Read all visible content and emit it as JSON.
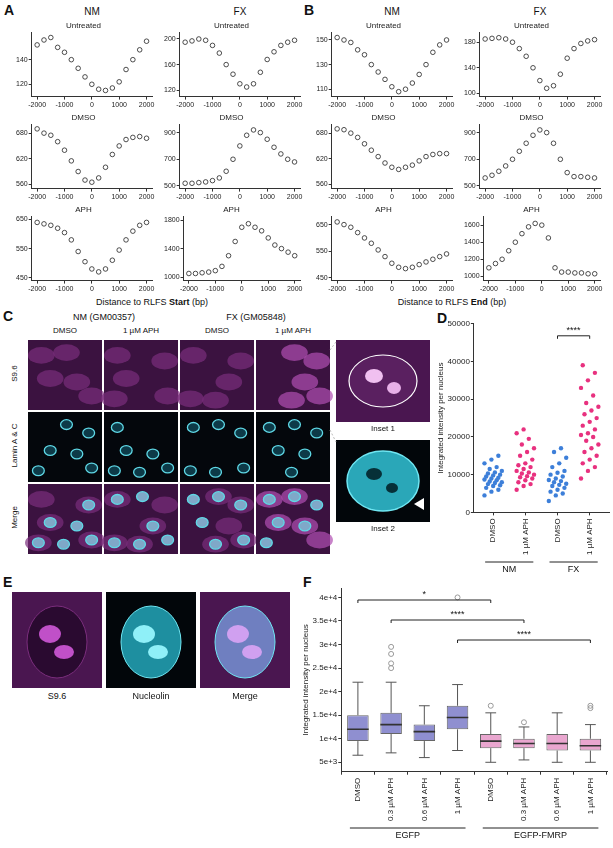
{
  "panel_headers": {
    "A": {
      "columns": [
        "NM",
        "FX"
      ],
      "x_label": [
        "Distance to RLFS",
        "Start",
        "(bp)"
      ]
    },
    "B": {
      "columns": [
        "NM",
        "FX"
      ],
      "x_label": [
        "Distance to RLFS",
        "End",
        "(bp)"
      ]
    }
  },
  "images": {
    "C": {
      "columns": [
        {
          "label": "NM (GM00357)",
          "conditions": [
            "DMSO",
            "1 µM APH"
          ]
        },
        {
          "label": "FX (GM05848)",
          "conditions": [
            "DMSO",
            "1 µM APH"
          ]
        }
      ],
      "rows": [
        "S9.6",
        "Lamin A & C",
        "Merge"
      ],
      "insets": [
        "Inset 1",
        "Inset 2"
      ]
    },
    "E": {
      "channels": [
        "S9.6",
        "Nucleolin",
        "Merge"
      ]
    }
  },
  "chart_data": [
    {
      "type": "scatter",
      "panel": "A",
      "column": "NM",
      "title": "Untreated",
      "marker": "circle",
      "grid": false,
      "x": [
        -2000,
        -1750,
        -1500,
        -1250,
        -1000,
        -750,
        -500,
        -250,
        0,
        250,
        500,
        750,
        1000,
        1250,
        1500,
        1750,
        2000
      ],
      "values": [
        152,
        156,
        158,
        150,
        146,
        140,
        133,
        126,
        120,
        116,
        115,
        117,
        122,
        132,
        140,
        148,
        155
      ],
      "xlim": [
        -2200,
        2200
      ],
      "xticks": [
        -2000,
        -1000,
        0,
        1000,
        2000
      ],
      "ylim": [
        110,
        162
      ],
      "yticks": [
        120,
        140
      ]
    },
    {
      "type": "scatter",
      "panel": "A",
      "column": "FX",
      "title": "Untreated",
      "marker": "circle",
      "grid": false,
      "x": [
        -2000,
        -1750,
        -1500,
        -1250,
        -1000,
        -750,
        -500,
        -250,
        0,
        250,
        500,
        750,
        1000,
        1250,
        1500,
        1750,
        2000
      ],
      "values": [
        195,
        197,
        200,
        198,
        190,
        178,
        160,
        145,
        130,
        125,
        130,
        148,
        168,
        180,
        190,
        195,
        198
      ],
      "xlim": [
        -2200,
        2200
      ],
      "xticks": [
        -2000,
        -1000,
        0,
        1000,
        2000
      ],
      "ylim": [
        110,
        210
      ],
      "yticks": [
        120,
        160,
        200
      ]
    },
    {
      "type": "scatter",
      "panel": "A",
      "column": "NM",
      "title": "DMSO",
      "marker": "circle",
      "grid": false,
      "x": [
        -2000,
        -1750,
        -1500,
        -1250,
        -1000,
        -750,
        -500,
        -250,
        0,
        250,
        500,
        750,
        1000,
        1250,
        1500,
        1750,
        2000
      ],
      "values": [
        690,
        680,
        675,
        660,
        640,
        615,
        590,
        570,
        565,
        575,
        600,
        630,
        650,
        665,
        670,
        672,
        668
      ],
      "xlim": [
        -2200,
        2200
      ],
      "xticks": [
        -2000,
        -1000,
        0,
        1000,
        2000
      ],
      "ylim": [
        550,
        700
      ],
      "yticks": [
        560,
        620,
        680
      ]
    },
    {
      "type": "scatter",
      "panel": "A",
      "column": "FX",
      "title": "DMSO",
      "marker": "circle",
      "grid": false,
      "x": [
        -2000,
        -1750,
        -1500,
        -1250,
        -1000,
        -750,
        -500,
        -250,
        0,
        250,
        500,
        750,
        1000,
        1250,
        1500,
        1750,
        2000
      ],
      "values": [
        520,
        520,
        525,
        530,
        540,
        560,
        610,
        700,
        800,
        880,
        920,
        900,
        850,
        790,
        740,
        700,
        680
      ],
      "xlim": [
        -2200,
        2200
      ],
      "xticks": [
        -2000,
        -1000,
        0,
        1000,
        2000
      ],
      "ylim": [
        480,
        960
      ],
      "yticks": [
        500,
        700,
        900
      ]
    },
    {
      "type": "scatter",
      "panel": "A",
      "column": "NM",
      "title": "APH",
      "marker": "circle",
      "grid": false,
      "x": [
        -2000,
        -1750,
        -1500,
        -1250,
        -1000,
        -750,
        -500,
        -250,
        0,
        250,
        500,
        750,
        1000,
        1250,
        1500,
        1750,
        2000
      ],
      "values": [
        640,
        635,
        630,
        620,
        605,
        580,
        540,
        505,
        480,
        470,
        480,
        510,
        545,
        580,
        610,
        630,
        640
      ],
      "xlim": [
        -2200,
        2200
      ],
      "xticks": [
        -2000,
        -1000,
        0,
        1000,
        2000
      ],
      "ylim": [
        440,
        660
      ],
      "yticks": [
        450,
        550,
        650
      ]
    },
    {
      "type": "scatter",
      "panel": "A",
      "column": "FX",
      "title": "APH",
      "marker": "circle",
      "grid": false,
      "x": [
        -2000,
        -1750,
        -1500,
        -1250,
        -1000,
        -750,
        -500,
        -250,
        0,
        250,
        500,
        750,
        1000,
        1250,
        1500,
        1750,
        2000
      ],
      "values": [
        1050,
        1050,
        1060,
        1070,
        1090,
        1150,
        1300,
        1500,
        1700,
        1750,
        1700,
        1650,
        1550,
        1450,
        1400,
        1350,
        1300
      ],
      "xlim": [
        -2200,
        2200
      ],
      "xticks": [
        -2000,
        -1000,
        0,
        1000,
        2000
      ],
      "ylim": [
        950,
        1850
      ],
      "yticks": [
        1000,
        1400,
        1800
      ]
    },
    {
      "type": "scatter",
      "panel": "B",
      "column": "NM",
      "title": "Untreated",
      "marker": "circle",
      "grid": false,
      "x": [
        -2000,
        -1750,
        -1500,
        -1250,
        -1000,
        -750,
        -500,
        -250,
        0,
        250,
        500,
        750,
        1000,
        1250,
        1500,
        1750,
        2000
      ],
      "values": [
        152,
        150,
        148,
        142,
        138,
        130,
        124,
        118,
        112,
        108,
        110,
        115,
        122,
        130,
        140,
        146,
        150
      ],
      "xlim": [
        -2200,
        2200
      ],
      "xticks": [
        -2000,
        -1000,
        0,
        1000,
        2000
      ],
      "ylim": [
        104,
        156
      ],
      "yticks": [
        110,
        130,
        150
      ]
    },
    {
      "type": "scatter",
      "panel": "B",
      "column": "FX",
      "title": "Untreated",
      "marker": "circle",
      "grid": false,
      "x": [
        -2000,
        -1750,
        -1500,
        -1250,
        -1000,
        -750,
        -500,
        -250,
        0,
        250,
        500,
        750,
        1000,
        1250,
        1500,
        1750,
        2000
      ],
      "values": [
        185,
        186,
        187,
        185,
        180,
        170,
        158,
        140,
        120,
        108,
        112,
        130,
        155,
        170,
        178,
        182,
        184
      ],
      "xlim": [
        -2200,
        2200
      ],
      "xticks": [
        -2000,
        -1000,
        0,
        1000,
        2000
      ],
      "ylim": [
        95,
        195
      ],
      "yticks": [
        100,
        140,
        180
      ]
    },
    {
      "type": "scatter",
      "panel": "B",
      "column": "NM",
      "title": "DMSO",
      "marker": "circle",
      "grid": false,
      "x": [
        -2000,
        -1750,
        -1500,
        -1250,
        -1000,
        -750,
        -500,
        -250,
        0,
        250,
        500,
        750,
        1000,
        1250,
        1500,
        1750,
        2000
      ],
      "values": [
        690,
        688,
        680,
        670,
        655,
        640,
        625,
        610,
        600,
        595,
        600,
        605,
        615,
        625,
        630,
        632,
        632
      ],
      "xlim": [
        -2200,
        2200
      ],
      "xticks": [
        -2000,
        -1000,
        0,
        1000,
        2000
      ],
      "ylim": [
        550,
        700
      ],
      "yticks": [
        560,
        620,
        680
      ]
    },
    {
      "type": "scatter",
      "panel": "B",
      "column": "FX",
      "title": "DMSO",
      "marker": "circle",
      "grid": false,
      "x": [
        -2000,
        -1750,
        -1500,
        -1250,
        -1000,
        -750,
        -500,
        -250,
        0,
        250,
        500,
        750,
        1000,
        1250,
        1500,
        1750,
        2000
      ],
      "values": [
        560,
        580,
        610,
        650,
        700,
        760,
        820,
        880,
        920,
        900,
        820,
        700,
        600,
        570,
        570,
        565,
        560
      ],
      "xlim": [
        -2200,
        2200
      ],
      "xticks": [
        -2000,
        -1000,
        0,
        1000,
        2000
      ],
      "ylim": [
        480,
        960
      ],
      "yticks": [
        500,
        700,
        900
      ]
    },
    {
      "type": "scatter",
      "panel": "B",
      "column": "NM",
      "title": "APH",
      "marker": "circle",
      "grid": false,
      "x": [
        -2000,
        -1750,
        -1500,
        -1250,
        -1000,
        -750,
        -500,
        -250,
        0,
        250,
        500,
        750,
        1000,
        1250,
        1500,
        1750,
        2000
      ],
      "values": [
        660,
        650,
        640,
        620,
        600,
        580,
        555,
        530,
        505,
        490,
        485,
        490,
        500,
        510,
        520,
        530,
        540
      ],
      "xlim": [
        -2200,
        2200
      ],
      "xticks": [
        -2000,
        -1000,
        0,
        1000,
        2000
      ],
      "ylim": [
        440,
        680
      ],
      "yticks": [
        450,
        550,
        650
      ]
    },
    {
      "type": "scatter",
      "panel": "B",
      "column": "FX",
      "title": "APH",
      "marker": "circle",
      "grid": false,
      "x": [
        -2000,
        -1750,
        -1500,
        -1250,
        -1000,
        -750,
        -500,
        -250,
        0,
        250,
        500,
        750,
        1000,
        1250,
        1500,
        1750,
        2000
      ],
      "values": [
        1100,
        1150,
        1200,
        1300,
        1400,
        1500,
        1580,
        1620,
        1600,
        1450,
        1100,
        1050,
        1050,
        1040,
        1040,
        1030,
        1030
      ],
      "xlim": [
        -2200,
        2200
      ],
      "xticks": [
        -2000,
        -1000,
        0,
        1000,
        2000
      ],
      "ylim": [
        950,
        1700
      ],
      "yticks": [
        1000,
        1200,
        1400,
        1600
      ]
    },
    {
      "type": "strip",
      "panel": "D",
      "grid": false,
      "marker": "circle",
      "categories": [
        "DMSO",
        "1 µM APH",
        "DMSO",
        "1 µM APH"
      ],
      "colors": [
        "#3d7fd9",
        "#e8317f",
        "#3d7fd9",
        "#e8317f"
      ],
      "groups": [
        {
          "label": "NM",
          "from": 0,
          "to": 1
        },
        {
          "label": "FX",
          "from": 2,
          "to": 3
        }
      ],
      "values": [
        [
          4500,
          5500,
          6000,
          6500,
          7000,
          7200,
          7500,
          7800,
          8000,
          8200,
          8500,
          8700,
          9000,
          9200,
          9500,
          9800,
          10000,
          10300,
          10600,
          11000,
          11500,
          12000,
          13000,
          14000,
          15000
        ],
        [
          6000,
          7000,
          7500,
          8000,
          8500,
          9000,
          9300,
          9600,
          10000,
          10300,
          10600,
          11000,
          11500,
          12000,
          12500,
          13000,
          14000,
          15000,
          16000,
          17000,
          18000,
          19500,
          21000,
          22000
        ],
        [
          3000,
          4500,
          5000,
          5500,
          6000,
          6500,
          7000,
          7300,
          7600,
          8000,
          8300,
          8600,
          9000,
          9500,
          10000,
          10500,
          11000,
          12000,
          13000,
          14500,
          16000,
          17000
        ],
        [
          9000,
          11000,
          12000,
          13000,
          14000,
          15000,
          16000,
          17000,
          18000,
          19000,
          20000,
          20500,
          21000,
          22000,
          23000,
          24000,
          25000,
          26000,
          27000,
          28000,
          29000,
          31000,
          33000,
          35000,
          37000,
          39000
        ]
      ],
      "y_label": "Integrated intensity per nucleus",
      "ylim": [
        0,
        50000
      ],
      "yticks": [
        0,
        10000,
        20000,
        30000,
        40000,
        50000
      ],
      "significance": [
        {
          "from": 2,
          "to": 3,
          "label": "****"
        }
      ]
    },
    {
      "type": "box",
      "panel": "F",
      "grid": false,
      "categories": [
        "DMSO",
        "0.3 µM APH",
        "0.6 µM APH",
        "1 µM APH",
        "DMSO",
        "0.3 µM APH",
        "0.6 µM APH",
        "1 µM APH"
      ],
      "colors": [
        "#8f8fd0",
        "#8f8fd0",
        "#8f8fd0",
        "#8f8fd0",
        "#e9a6cf",
        "#e9a6cf",
        "#e9a6cf",
        "#e9a6cf"
      ],
      "groups": [
        {
          "label": "EGFP",
          "from": 0,
          "to": 3
        },
        {
          "label": "EGFP-FMRP",
          "from": 4,
          "to": 7
        }
      ],
      "boxes": [
        {
          "low": 6500,
          "q1": 9500,
          "median": 12000,
          "q3": 15000,
          "high": 22000,
          "outliers": []
        },
        {
          "low": 7000,
          "q1": 11000,
          "median": 13000,
          "q3": 15500,
          "high": 22000,
          "outliers": [
            25000,
            26000,
            28000,
            29500
          ]
        },
        {
          "low": 6000,
          "q1": 9500,
          "median": 11500,
          "q3": 13000,
          "high": 17000,
          "outliers": []
        },
        {
          "low": 7500,
          "q1": 12000,
          "median": 14500,
          "q3": 17000,
          "high": 21500,
          "outliers": [
            40000
          ]
        },
        {
          "low": 5000,
          "q1": 8000,
          "median": 9500,
          "q3": 11000,
          "high": 15500,
          "outliers": [
            17000
          ]
        },
        {
          "low": 5500,
          "q1": 8000,
          "median": 9000,
          "q3": 10000,
          "high": 12500,
          "outliers": [
            13500
          ]
        },
        {
          "low": 5000,
          "q1": 7500,
          "median": 9000,
          "q3": 11000,
          "high": 15500,
          "outliers": []
        },
        {
          "low": 5000,
          "q1": 7500,
          "median": 8500,
          "q3": 10000,
          "high": 13000,
          "outliers": [
            16500,
            17000
          ]
        }
      ],
      "y_label": "Integrated intensity per nucleus",
      "ylim": [
        3000,
        42000
      ],
      "yticks": [
        {
          "value": 5000,
          "label": "5e+3"
        },
        {
          "value": 10000,
          "label": "1e+4"
        },
        {
          "value": 15000,
          "label": "1.5e+4"
        },
        {
          "value": 20000,
          "label": "2e+4"
        },
        {
          "value": 25000,
          "label": "2.5e+4"
        },
        {
          "value": 30000,
          "label": "3e+4"
        },
        {
          "value": 35000,
          "label": "3.5e+4"
        },
        {
          "value": 40000,
          "label": "4e+4"
        }
      ],
      "significance": [
        {
          "from": 0,
          "to": 4,
          "label": "*"
        },
        {
          "from": 1,
          "to": 5,
          "label": "****"
        },
        {
          "from": 3,
          "to": 7,
          "label": "****"
        }
      ]
    }
  ]
}
